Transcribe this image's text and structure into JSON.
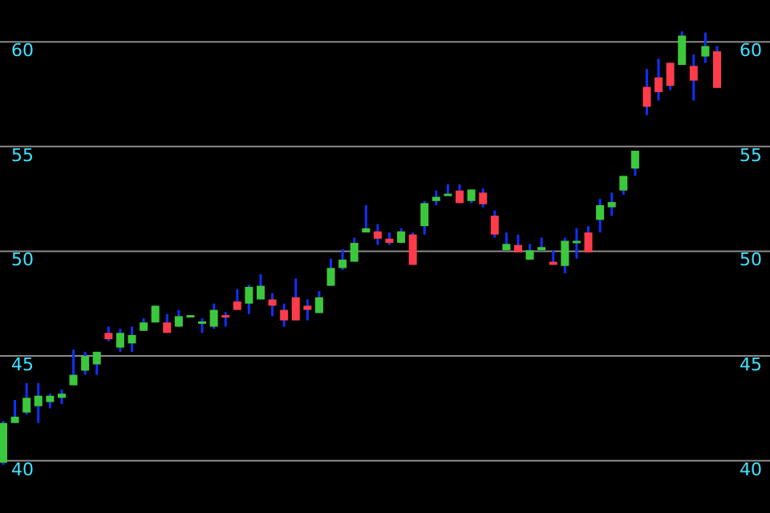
{
  "chart_data": {
    "type": "candlestick",
    "categories": [
      null,
      null,
      null,
      null,
      null,
      null,
      null,
      null,
      null,
      null,
      null,
      null,
      null,
      null,
      null,
      null,
      null,
      null,
      null,
      null,
      null,
      null,
      null,
      null,
      null,
      null,
      null,
      null,
      null,
      null,
      null,
      null,
      null,
      null,
      null,
      null,
      null,
      null,
      null,
      null,
      null,
      null,
      null,
      null,
      null,
      null,
      null,
      null,
      null,
      null,
      null,
      null,
      null,
      null,
      null,
      null,
      null,
      null,
      null,
      null,
      null,
      null
    ],
    "ohlc": [
      [
        39.9,
        41.9,
        39.8,
        41.8
      ],
      [
        41.8,
        42.9,
        41.8,
        42.1
      ],
      [
        42.3,
        43.7,
        42.2,
        43.0
      ],
      [
        42.6,
        43.7,
        41.8,
        43.1
      ],
      [
        42.8,
        43.2,
        42.5,
        43.1
      ],
      [
        43.0,
        43.4,
        42.7,
        43.2
      ],
      [
        43.6,
        45.3,
        43.6,
        44.1
      ],
      [
        44.3,
        45.2,
        44.1,
        45.0
      ],
      [
        44.6,
        45.2,
        44.1,
        45.2
      ],
      [
        46.1,
        46.4,
        45.7,
        45.8
      ],
      [
        45.4,
        46.3,
        45.2,
        46.1
      ],
      [
        45.6,
        46.4,
        45.2,
        46.0
      ],
      [
        46.2,
        46.8,
        46.2,
        46.6
      ],
      [
        46.6,
        47.4,
        46.6,
        47.4
      ],
      [
        46.6,
        47.0,
        46.1,
        46.1
      ],
      [
        46.4,
        47.2,
        46.4,
        46.9
      ],
      [
        46.9,
        46.95,
        46.9,
        46.95
      ],
      [
        46.6,
        46.8,
        46.1,
        46.65
      ],
      [
        46.4,
        47.5,
        46.3,
        47.2
      ],
      [
        46.95,
        47.1,
        46.4,
        46.9
      ],
      [
        47.6,
        48.2,
        47.2,
        47.2
      ],
      [
        47.5,
        48.4,
        47.0,
        48.3
      ],
      [
        47.7,
        48.9,
        47.7,
        48.35
      ],
      [
        47.7,
        48.0,
        46.9,
        47.4
      ],
      [
        47.2,
        47.5,
        46.4,
        46.7
      ],
      [
        47.8,
        48.7,
        46.7,
        46.7
      ],
      [
        47.4,
        47.7,
        46.7,
        47.2
      ],
      [
        47.05,
        48.1,
        47.05,
        47.8
      ],
      [
        48.35,
        49.65,
        48.35,
        49.2
      ],
      [
        49.2,
        50.1,
        49.1,
        49.6
      ],
      [
        49.5,
        50.65,
        49.5,
        50.4
      ],
      [
        50.9,
        52.2,
        50.9,
        51.1
      ],
      [
        50.95,
        51.3,
        50.3,
        50.6
      ],
      [
        50.6,
        50.9,
        50.3,
        50.4
      ],
      [
        50.4,
        51.1,
        50.4,
        50.95
      ],
      [
        50.8,
        50.9,
        49.35,
        49.35
      ],
      [
        51.2,
        52.4,
        50.8,
        52.3
      ],
      [
        52.4,
        52.9,
        52.2,
        52.6
      ],
      [
        52.7,
        53.2,
        52.7,
        52.75
      ],
      [
        52.9,
        53.2,
        52.3,
        52.3
      ],
      [
        52.4,
        52.95,
        52.3,
        52.95
      ],
      [
        52.8,
        53.0,
        52.1,
        52.25
      ],
      [
        51.7,
        51.95,
        50.65,
        50.8
      ],
      [
        50.05,
        50.9,
        50.05,
        50.35
      ],
      [
        50.3,
        50.8,
        49.95,
        49.95
      ],
      [
        49.6,
        50.35,
        49.6,
        50.05
      ],
      [
        50.05,
        50.65,
        50.05,
        50.2
      ],
      [
        49.5,
        50.05,
        49.35,
        49.35
      ],
      [
        49.3,
        50.65,
        48.95,
        50.5
      ],
      [
        50.45,
        51.1,
        49.65,
        50.5
      ],
      [
        50.9,
        51.2,
        49.95,
        49.95
      ],
      [
        51.5,
        52.5,
        50.9,
        52.2
      ],
      [
        52.1,
        52.8,
        51.7,
        52.35
      ],
      [
        52.9,
        53.6,
        52.7,
        53.6
      ],
      [
        53.95,
        54.8,
        53.6,
        54.8
      ],
      [
        57.85,
        58.7,
        56.5,
        56.9
      ],
      [
        58.3,
        59.2,
        57.2,
        57.6
      ],
      [
        59.0,
        59.0,
        57.7,
        57.9
      ],
      [
        58.9,
        60.5,
        58.9,
        60.3
      ],
      [
        58.85,
        59.4,
        57.2,
        58.15
      ],
      [
        59.3,
        60.45,
        59.0,
        59.8
      ],
      [
        59.55,
        59.8,
        57.8,
        57.8
      ]
    ],
    "ylim": [
      37.5,
      62
    ],
    "yticks": [
      40,
      45,
      50,
      55,
      60
    ],
    "y2lim": [
      37.5,
      62
    ],
    "y2ticks": [
      40,
      45,
      50,
      55,
      60
    ],
    "grid": "y",
    "tick_labels": "y"
  }
}
